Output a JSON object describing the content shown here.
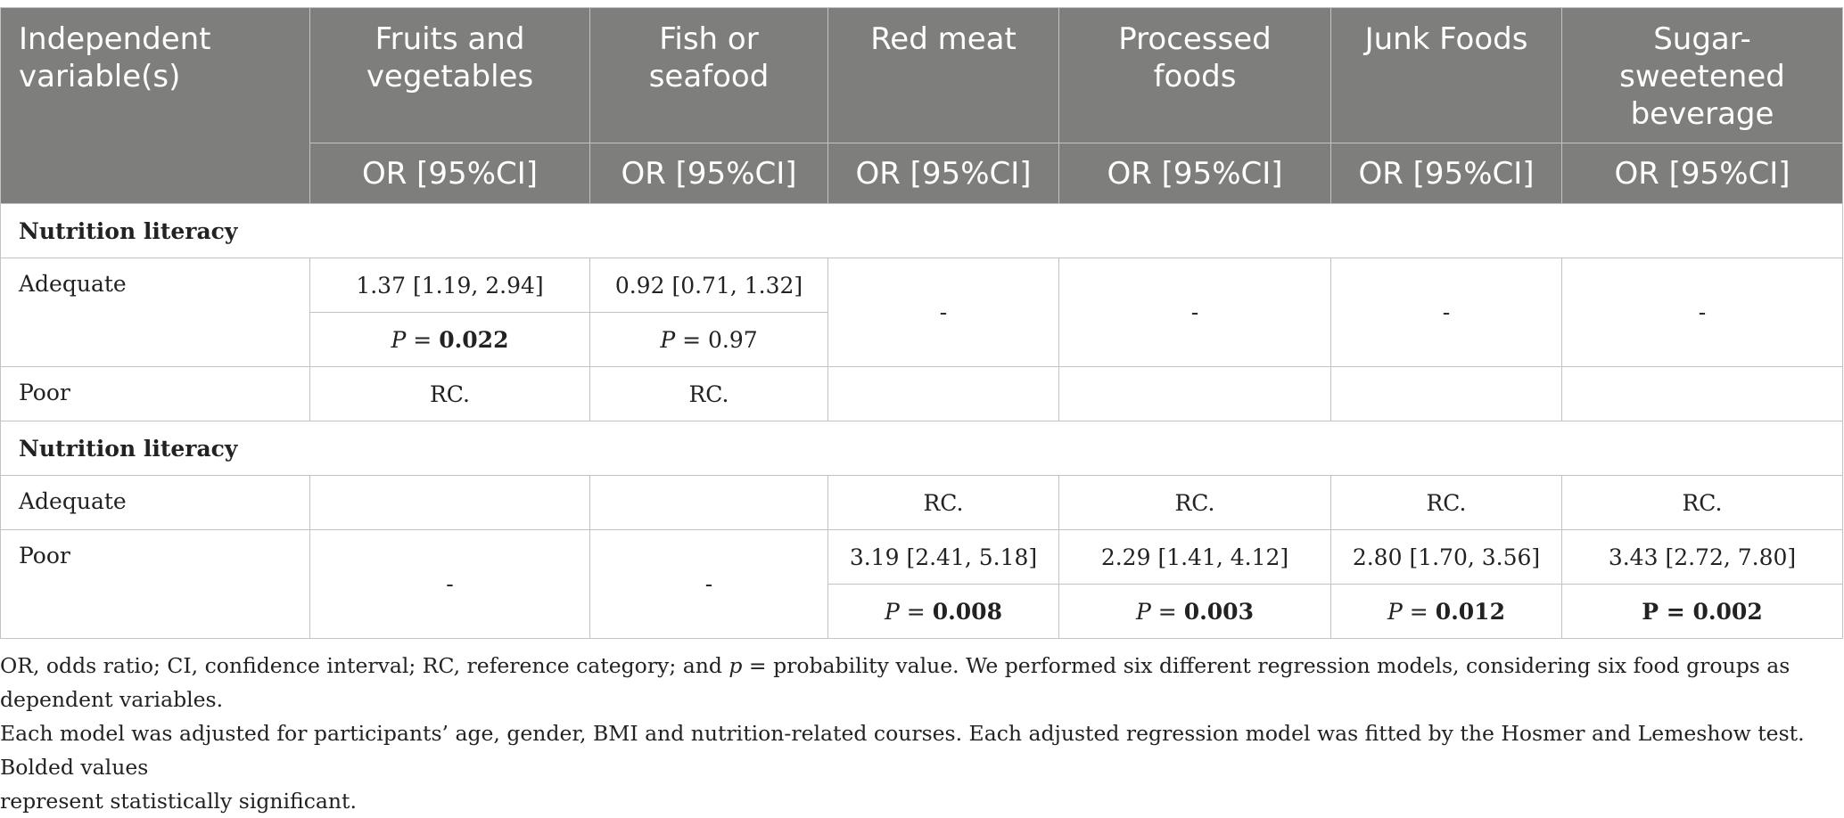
{
  "table": {
    "header": {
      "independent": "Independent variable(s)",
      "columns": [
        "Fruits and vegetables",
        "Fish or seafood",
        "Red meat",
        "Processed foods",
        "Junk Foods",
        "Sugar-sweetened beverage"
      ],
      "or_label": "OR [95%CI]"
    },
    "section1": {
      "title": "Nutrition literacy",
      "adequate": {
        "label": "Adequate",
        "or": [
          "1.37 [1.19, 2.94]",
          "0.92 [0.71, 1.32]"
        ],
        "p_prefix": "P",
        "p_eq": " = ",
        "p": [
          "0.022",
          "0.97"
        ],
        "dash": [
          "-",
          "-",
          "-",
          "-"
        ]
      },
      "poor": {
        "label": "Poor",
        "ref": [
          "RC.",
          "RC."
        ]
      }
    },
    "section2": {
      "title": "Nutrition literacy",
      "adequate": {
        "label": "Adequate",
        "ref": [
          "RC.",
          "RC.",
          "RC.",
          "RC."
        ]
      },
      "poor": {
        "label": "Poor",
        "dash": [
          "-",
          "-"
        ],
        "or": [
          "3.19 [2.41, 5.18]",
          "2.29 [1.41, 4.12]",
          "2.80 [1.70, 3.56]",
          "3.43 [2.72, 7.80]"
        ],
        "p_prefix": "P",
        "p_eq": " = ",
        "p": [
          "0.008",
          "0.003",
          "0.012",
          "0.002"
        ]
      }
    }
  },
  "notes": {
    "line1_a": "OR, odds ratio; CI, confidence interval; RC, reference category; and ",
    "line1_p": "p",
    "line1_b": " = probability value. We performed six different regression models, considering six food groups as dependent variables.",
    "line2": "Each model was adjusted for participants’ age, gender, BMI and nutrition-related courses. Each adjusted regression model was fitted by the Hosmer and Lemeshow test. Bolded values",
    "line3": "represent statistically significant."
  }
}
